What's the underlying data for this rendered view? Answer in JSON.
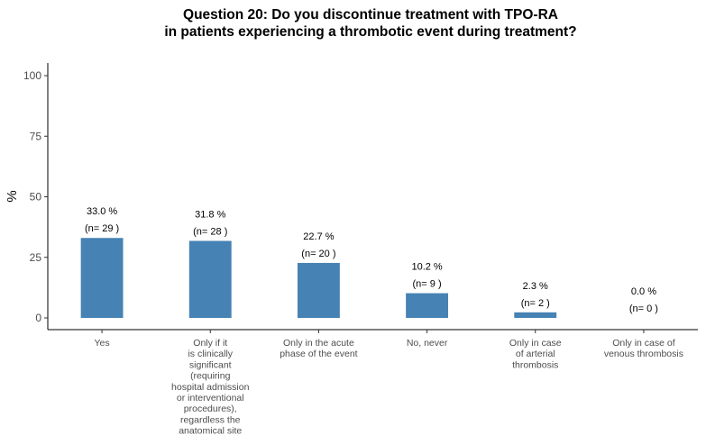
{
  "chart_data": {
    "type": "bar",
    "title_lines": [
      "Question 20: Do you discontinue treatment with TPO-RA",
      "in patients experiencing a thrombotic event during treatment?"
    ],
    "xlabel": "",
    "ylabel": "%",
    "ylim": [
      0,
      100
    ],
    "yticks": [
      "0",
      "25",
      "50",
      "75",
      "100"
    ],
    "grid": false,
    "bar_color": "#4682B4",
    "categories": [
      [
        "Yes"
      ],
      [
        "Only if it",
        "is clinically",
        "significant",
        "(requiring",
        "hospital admission",
        "or interventional",
        "procedures),",
        "regardless the",
        "anatomical site"
      ],
      [
        "Only in the acute",
        "phase of the event"
      ],
      [
        "No, never"
      ],
      [
        "Only in case",
        "of arterial",
        "thrombosis"
      ],
      [
        "Only in case of",
        "venous thrombosis"
      ]
    ],
    "values": [
      33.0,
      31.8,
      22.7,
      10.2,
      2.3,
      0.0
    ],
    "percent_labels": [
      "33.0 %",
      "31.8 %",
      "22.7 %",
      "10.2 %",
      "2.3 %",
      "0.0 %"
    ],
    "count_labels": [
      "(n= 29 )",
      "(n= 28 )",
      "(n= 20 )",
      "(n= 9 )",
      "(n= 2 )",
      "(n= 0 )"
    ]
  }
}
